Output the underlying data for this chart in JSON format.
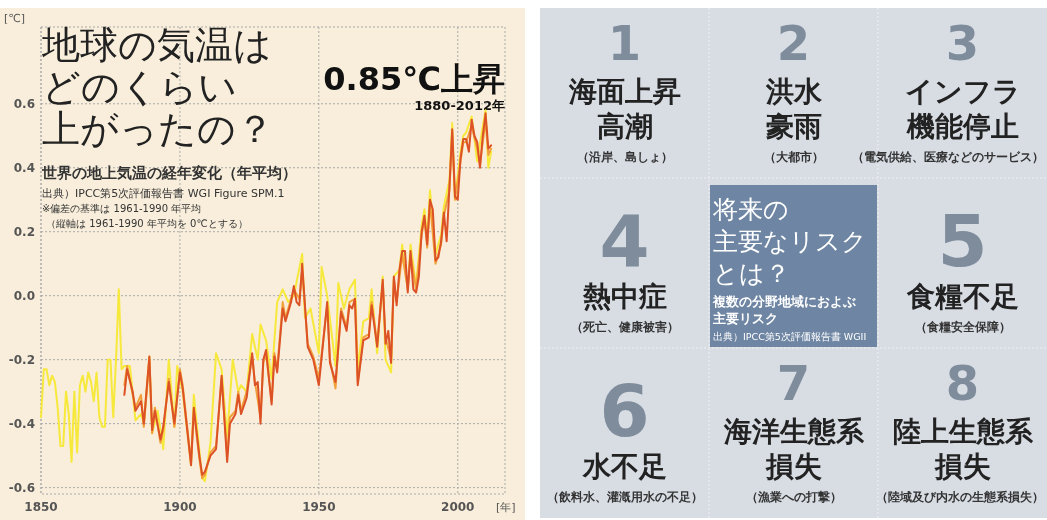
{
  "chart_data": [
    {
      "type": "line",
      "title": "地球の気温はどのくらい上がったの？",
      "subtitle": "世界の地上気温の経年変化（年平均）",
      "ylabel": "[℃]",
      "xlabel": "[年]",
      "annotations": [
        "0.85℃上昇",
        "1880-2012年",
        "出典）IPCC第5次評価報告書 WGI Figure SPM.1",
        "※偏差の基準は 1961-1990 年平均",
        "（縦軸は 1961-1990 年平均を 0℃とする）"
      ],
      "xlim": [
        1850,
        2017
      ],
      "xticks": [
        1850,
        1900,
        1950,
        2000
      ],
      "ylim": [
        -0.62,
        0.84
      ],
      "yticks": [
        {
          "value": -0.6,
          "label": "-0.6"
        },
        {
          "value": -0.4,
          "label": "-0.4"
        },
        {
          "value": -0.2,
          "label": "-0.2"
        },
        {
          "value": 0,
          "label": "0.0"
        },
        {
          "value": 0.2,
          "label": "0.2"
        },
        {
          "value": 0.4,
          "label": "0.4"
        },
        {
          "value": 0.6,
          "label": "0.6"
        }
      ],
      "grid": true,
      "line_style": "solid",
      "series": [
        {
          "color": "#f7e83c",
          "x": [
            1850,
            1851,
            1852,
            1853,
            1854,
            1855,
            1856,
            1857,
            1858,
            1859,
            1860,
            1861,
            1862,
            1863,
            1864,
            1865,
            1866,
            1867,
            1868,
            1869,
            1870,
            1871,
            1872,
            1873,
            1874,
            1875,
            1876,
            1877,
            1878,
            1879,
            1880,
            1882,
            1884,
            1886,
            1887,
            1889,
            1890,
            1892,
            1894,
            1896,
            1898,
            1899,
            1901,
            1904,
            1905,
            1908,
            1909,
            1911,
            1913,
            1915,
            1917,
            1919,
            1921,
            1922,
            1924,
            1926,
            1928,
            1929,
            1931,
            1933,
            1935,
            1937,
            1939,
            1941,
            1944,
            1945,
            1947,
            1950,
            1951,
            1953,
            1956,
            1957,
            1959,
            1961,
            1963,
            1964,
            1966,
            1968,
            1969,
            1971,
            1973,
            1974,
            1976,
            1977,
            1979,
            1980,
            1982,
            1983,
            1985,
            1987,
            1988,
            1989,
            1990,
            1992,
            1994,
            1995,
            1997,
            1998,
            1999,
            2001,
            2002,
            2003,
            2005,
            2007,
            2009,
            2010,
            2011,
            2012
          ],
          "values": [
            -0.38,
            -0.23,
            -0.23,
            -0.28,
            -0.25,
            -0.27,
            -0.35,
            -0.47,
            -0.47,
            -0.3,
            -0.37,
            -0.52,
            -0.3,
            -0.49,
            -0.28,
            -0.25,
            -0.3,
            -0.24,
            -0.27,
            -0.33,
            -0.24,
            -0.38,
            -0.41,
            -0.41,
            -0.2,
            -0.2,
            -0.38,
            -0.2,
            0.02,
            -0.23,
            -0.22,
            -0.22,
            -0.39,
            -0.37,
            -0.4,
            -0.19,
            -0.43,
            -0.36,
            -0.48,
            -0.2,
            -0.41,
            -0.22,
            -0.3,
            -0.53,
            -0.31,
            -0.57,
            -0.58,
            -0.46,
            -0.18,
            -0.23,
            -0.44,
            -0.2,
            -0.3,
            -0.28,
            -0.3,
            -0.12,
            -0.2,
            -0.09,
            -0.14,
            -0.26,
            -0.02,
            0.02,
            -0.02,
            0.0,
            0.13,
            -0.07,
            -0.04,
            -0.18,
            0.09,
            0.0,
            -0.22,
            0.04,
            -0.04,
            0.02,
            0.05,
            -0.23,
            -0.08,
            -0.07,
            0.02,
            -0.18,
            0.06,
            -0.2,
            -0.24,
            0.06,
            0.08,
            0.16,
            0.02,
            0.16,
            0.03,
            0.22,
            0.27,
            0.18,
            0.33,
            0.13,
            0.19,
            0.28,
            0.36,
            0.54,
            0.3,
            0.45,
            0.5,
            0.51,
            0.56,
            0.42,
            0.53,
            0.58,
            0.4,
            0.45
          ]
        },
        {
          "color": "#f2a03a",
          "x": [
            1880,
            1881,
            1883,
            1884,
            1886,
            1887,
            1889,
            1890,
            1891,
            1893,
            1894,
            1896,
            1898,
            1900,
            1901,
            1904,
            1905,
            1907,
            1908,
            1909,
            1911,
            1913,
            1915,
            1917,
            1918,
            1920,
            1921,
            1922,
            1924,
            1926,
            1927,
            1929,
            1930,
            1931,
            1933,
            1934,
            1935,
            1937,
            1938,
            1940,
            1941,
            1943,
            1944,
            1946,
            1948,
            1950,
            1953,
            1954,
            1956,
            1958,
            1960,
            1961,
            1963,
            1964,
            1966,
            1968,
            1969,
            1971,
            1973,
            1974,
            1976,
            1977,
            1978,
            1980,
            1982,
            1983,
            1985,
            1987,
            1988,
            1989,
            1990,
            1992,
            1994,
            1995,
            1997,
            1998,
            1999,
            2001,
            2002,
            2003,
            2005,
            2007,
            2008,
            2010,
            2011,
            2012
          ],
          "values": [
            -0.28,
            -0.22,
            -0.31,
            -0.35,
            -0.31,
            -0.41,
            -0.2,
            -0.43,
            -0.35,
            -0.46,
            -0.42,
            -0.26,
            -0.41,
            -0.23,
            -0.28,
            -0.52,
            -0.36,
            -0.51,
            -0.57,
            -0.56,
            -0.49,
            -0.47,
            -0.26,
            -0.5,
            -0.38,
            -0.36,
            -0.3,
            -0.36,
            -0.3,
            -0.19,
            -0.27,
            -0.38,
            -0.21,
            -0.18,
            -0.33,
            -0.18,
            -0.23,
            -0.02,
            -0.07,
            -0.01,
            0.02,
            -0.01,
            0.08,
            -0.15,
            -0.19,
            -0.26,
            -0.03,
            -0.2,
            -0.29,
            -0.04,
            -0.1,
            -0.02,
            -0.01,
            -0.27,
            -0.13,
            -0.12,
            -0.02,
            -0.15,
            0.04,
            -0.13,
            -0.2,
            0.05,
            -0.02,
            0.13,
            0.02,
            0.13,
            0.02,
            0.19,
            0.24,
            0.15,
            0.29,
            0.1,
            0.16,
            0.25,
            0.33,
            0.51,
            0.3,
            0.42,
            0.48,
            0.48,
            0.53,
            0.46,
            0.41,
            0.55,
            0.44,
            0.46
          ]
        },
        {
          "color": "#dc5226",
          "x": [
            1880,
            1881,
            1883,
            1884,
            1886,
            1887,
            1889,
            1890,
            1891,
            1893,
            1894,
            1896,
            1898,
            1900,
            1901,
            1904,
            1905,
            1907,
            1908,
            1909,
            1911,
            1913,
            1915,
            1917,
            1918,
            1920,
            1921,
            1922,
            1924,
            1926,
            1927,
            1928,
            1929,
            1930,
            1931,
            1933,
            1934,
            1935,
            1937,
            1938,
            1940,
            1941,
            1942,
            1943,
            1944,
            1946,
            1948,
            1950,
            1953,
            1954,
            1956,
            1958,
            1960,
            1961,
            1962,
            1963,
            1964,
            1966,
            1968,
            1969,
            1971,
            1973,
            1974,
            1975,
            1976,
            1977,
            1978,
            1979,
            1980,
            1981,
            1982,
            1983,
            1984,
            1985,
            1986,
            1987,
            1988,
            1989,
            1990,
            1991,
            1992,
            1993,
            1994,
            1995,
            1996,
            1997,
            1998,
            1999,
            2000,
            2001,
            2002,
            2003,
            2004,
            2005,
            2006,
            2007,
            2008,
            2009,
            2010,
            2011,
            2012
          ],
          "values": [
            -0.31,
            -0.23,
            -0.3,
            -0.36,
            -0.33,
            -0.4,
            -0.19,
            -0.42,
            -0.36,
            -0.45,
            -0.41,
            -0.27,
            -0.4,
            -0.24,
            -0.29,
            -0.53,
            -0.35,
            -0.5,
            -0.56,
            -0.55,
            -0.5,
            -0.48,
            -0.25,
            -0.52,
            -0.4,
            -0.37,
            -0.31,
            -0.37,
            -0.32,
            -0.18,
            -0.28,
            -0.27,
            -0.4,
            -0.2,
            -0.17,
            -0.34,
            -0.19,
            -0.24,
            -0.04,
            -0.08,
            -0.02,
            0.03,
            -0.02,
            -0.03,
            0.1,
            -0.16,
            -0.2,
            -0.28,
            -0.02,
            -0.21,
            -0.27,
            -0.05,
            -0.11,
            -0.03,
            -0.04,
            -0.01,
            -0.28,
            -0.14,
            -0.13,
            -0.03,
            -0.16,
            0.05,
            -0.15,
            -0.11,
            -0.21,
            0.06,
            -0.03,
            0.08,
            0.14,
            0.14,
            0.01,
            0.14,
            0.02,
            0.01,
            0.06,
            0.2,
            0.25,
            0.16,
            0.3,
            0.27,
            0.11,
            0.12,
            0.17,
            0.26,
            0.17,
            0.34,
            0.52,
            0.31,
            0.3,
            0.43,
            0.49,
            0.49,
            0.45,
            0.55,
            0.5,
            0.48,
            0.4,
            0.5,
            0.57,
            0.46,
            0.47
          ]
        }
      ]
    },
    {
      "type": "other",
      "title": "将来の主要なリスクとは？",
      "subtitle": "複数の分野地域におよぶ主要リスク",
      "annotations": [
        "1",
        "海面上昇",
        "高潮",
        "（沿岸、島しょ）",
        "2",
        "洪水",
        "豪雨",
        "（大都市）",
        "3",
        "インフラ",
        "機能停止",
        "（電気供給、医療などのサービス）",
        "4",
        "熱中症",
        "（死亡、健康被害）",
        "5",
        "食糧不足",
        "（食糧安全保障）",
        "6",
        "水不足",
        "（飲料水、灌漑用水の不足）",
        "7",
        "海洋生態系",
        "損失",
        "（漁業への打撃）",
        "8",
        "陸上生態系",
        "損失",
        "（陸域及び内水の生態系損失）",
        "出典）IPCC第5次評価報告書 WGII"
      ]
    }
  ]
}
